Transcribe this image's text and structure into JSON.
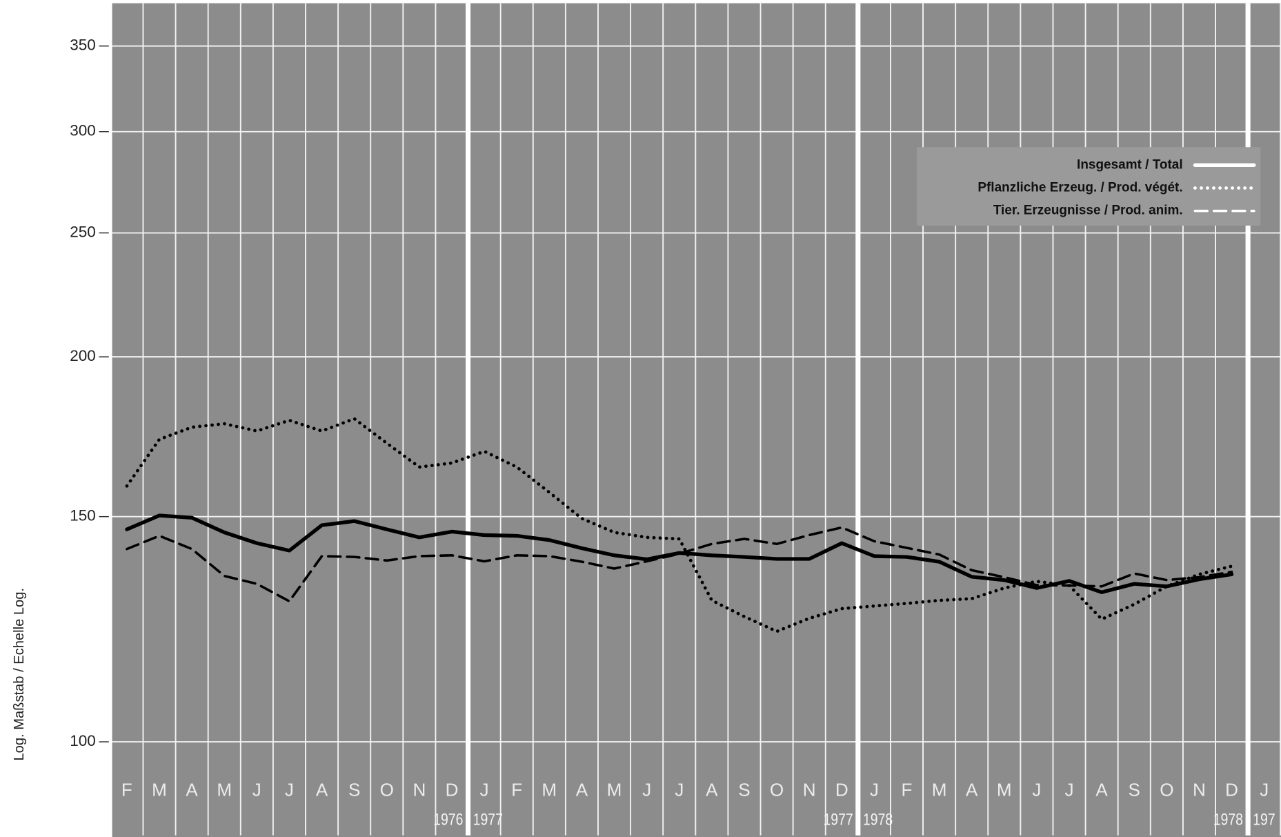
{
  "chart_data": {
    "type": "line",
    "y_axis_label": "Log. Maßstab / Echelle Log.",
    "log_scale": true,
    "grid": true,
    "legend": "upper right",
    "ylim": [
      84.5,
      378
    ],
    "yticks": [
      100,
      150,
      200,
      250,
      300,
      350
    ],
    "categories": [
      "F",
      "M",
      "A",
      "M",
      "J",
      "J",
      "A",
      "S",
      "O",
      "N",
      "D",
      "J",
      "F",
      "M",
      "A",
      "M",
      "J",
      "J",
      "A",
      "S",
      "O",
      "N",
      "D",
      "J",
      "F",
      "M",
      "A",
      "M",
      "J",
      "J",
      "A",
      "S",
      "O",
      "N",
      "D",
      "J"
    ],
    "year_marks": [
      {
        "end": "1976",
        "start": "1977"
      },
      {
        "end": "1977",
        "start": "1978"
      },
      {
        "end": "1978",
        "start": "197"
      }
    ],
    "series": [
      {
        "name": "Insgesamt / Total",
        "color": "#000000",
        "dash": "solid",
        "values": [
          146.6,
          150.3,
          149.7,
          145.8,
          143.0,
          141.1,
          147.7,
          148.8,
          146.6,
          144.5,
          146.0,
          145.1,
          144.9,
          143.8,
          141.7,
          139.9,
          138.9,
          140.5,
          139.9,
          139.5,
          139.0,
          139.0,
          143.0,
          139.7,
          139.5,
          138.3,
          134.6,
          133.8,
          131.9,
          133.6,
          130.9,
          132.9,
          132.3,
          134.0,
          135.2,
          null
        ]
      },
      {
        "name": "Pflanzliche Erzeug. / Prod. végét.",
        "color": "#000000",
        "dash": "dotted",
        "values": [
          158.5,
          172.4,
          176.2,
          177.3,
          175.0,
          178.4,
          175.0,
          178.9,
          171.2,
          164.0,
          165.2,
          168.7,
          164.0,
          156.7,
          149.5,
          145.8,
          144.5,
          144.1,
          129.0,
          125.3,
          122.0,
          124.9,
          127.1,
          127.7,
          128.3,
          129.0,
          129.4,
          131.9,
          133.5,
          132.5,
          124.7,
          128.1,
          132.3,
          135.2,
          137.2,
          null
        ]
      },
      {
        "name": "Tier. Erzeugnisse / Prod. anim.",
        "color": "#000000",
        "dash": "dashed",
        "values": [
          141.5,
          144.9,
          141.5,
          134.8,
          132.9,
          128.8,
          139.7,
          139.5,
          138.6,
          139.7,
          139.9,
          138.4,
          139.9,
          139.7,
          138.3,
          136.6,
          138.4,
          140.3,
          142.8,
          144.1,
          142.8,
          145.1,
          147.1,
          143.5,
          141.8,
          140.1,
          136.2,
          134.5,
          132.6,
          132.5,
          132.3,
          135.4,
          133.8,
          134.5,
          135.8,
          null
        ]
      }
    ]
  }
}
